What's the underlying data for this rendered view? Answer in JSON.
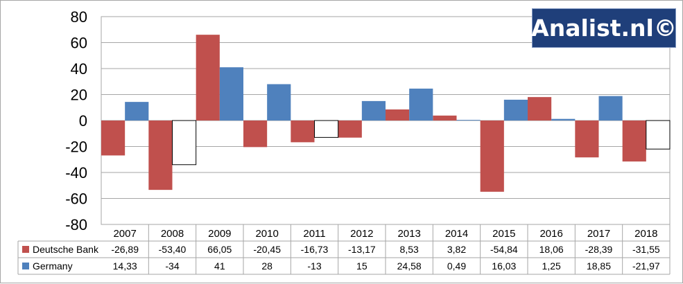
{
  "logo_text": "Analist.nl©",
  "chart_data": {
    "type": "bar",
    "categories": [
      "2007",
      "2008",
      "2009",
      "2010",
      "2011",
      "2012",
      "2013",
      "2014",
      "2015",
      "2016",
      "2017",
      "2018"
    ],
    "ylim": [
      -80,
      80
    ],
    "yticks": [
      80,
      60,
      40,
      20,
      0,
      -20,
      -40,
      -60,
      -80
    ],
    "grid": true,
    "legend": "data-table-left",
    "series": [
      {
        "name": "Deutsche Bank",
        "color": "#c0504d",
        "values": [
          -26.89,
          -53.4,
          66.05,
          -20.45,
          -16.73,
          -13.17,
          8.53,
          3.82,
          -54.84,
          18.06,
          -28.39,
          -31.55
        ],
        "labels": [
          "-26,89",
          "-53,40",
          "66,05",
          "-20,45",
          "-16,73",
          "-13,17",
          "8,53",
          "3,82",
          "-54,84",
          "18,06",
          "-28,39",
          "-31,55"
        ]
      },
      {
        "name": "Germany",
        "color": "#4f81bd",
        "negative_fill": "#ffffff",
        "values": [
          14.33,
          -34,
          41,
          28,
          -13,
          15,
          24.58,
          0.49,
          16.03,
          1.25,
          18.85,
          -21.97
        ],
        "labels": [
          "14,33",
          "-34",
          "41",
          "28",
          "-13",
          "15",
          "24,58",
          "0,49",
          "16,03",
          "1,25",
          "18,85",
          "-21,97"
        ]
      }
    ]
  }
}
